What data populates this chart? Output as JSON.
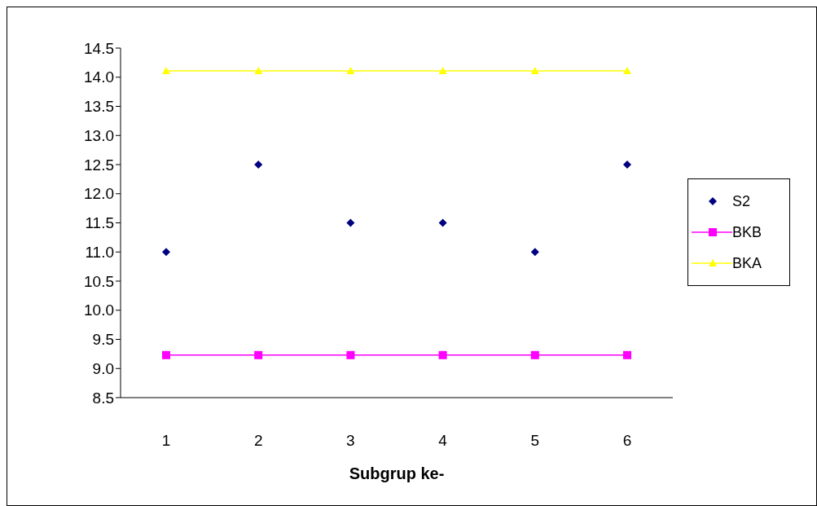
{
  "chart_data": {
    "type": "line",
    "xlabel": "Subgrup ke-",
    "categories": [
      "1",
      "2",
      "3",
      "4",
      "5",
      "6"
    ],
    "series": [
      {
        "name": "S2",
        "type": "scatter",
        "marker": "diamond",
        "color": "#000080",
        "values": [
          11.0,
          12.5,
          11.5,
          11.5,
          11.0,
          12.5
        ]
      },
      {
        "name": "BKB",
        "type": "line",
        "marker": "square",
        "color": "#ff00ff",
        "values": [
          9.23,
          9.23,
          9.23,
          9.23,
          9.23,
          9.23
        ]
      },
      {
        "name": "BKA",
        "type": "line",
        "marker": "triangle",
        "color": "#ffff00",
        "values": [
          14.11,
          14.11,
          14.11,
          14.11,
          14.11,
          14.11
        ]
      }
    ],
    "ylim": [
      8.5,
      14.5
    ],
    "yticks": [
      8.5,
      {
        "value": 9,
        "label": "9.0"
      },
      9.5,
      {
        "value": 10,
        "label": "10.0"
      },
      10.5,
      {
        "value": 11,
        "label": "11.0"
      },
      11.5,
      {
        "value": 12,
        "label": "12.0"
      },
      12.5,
      {
        "value": 13,
        "label": "13.0"
      },
      13.5,
      {
        "value": 14,
        "label": "14.0"
      },
      14.5
    ],
    "grid": false,
    "legend": "right"
  }
}
